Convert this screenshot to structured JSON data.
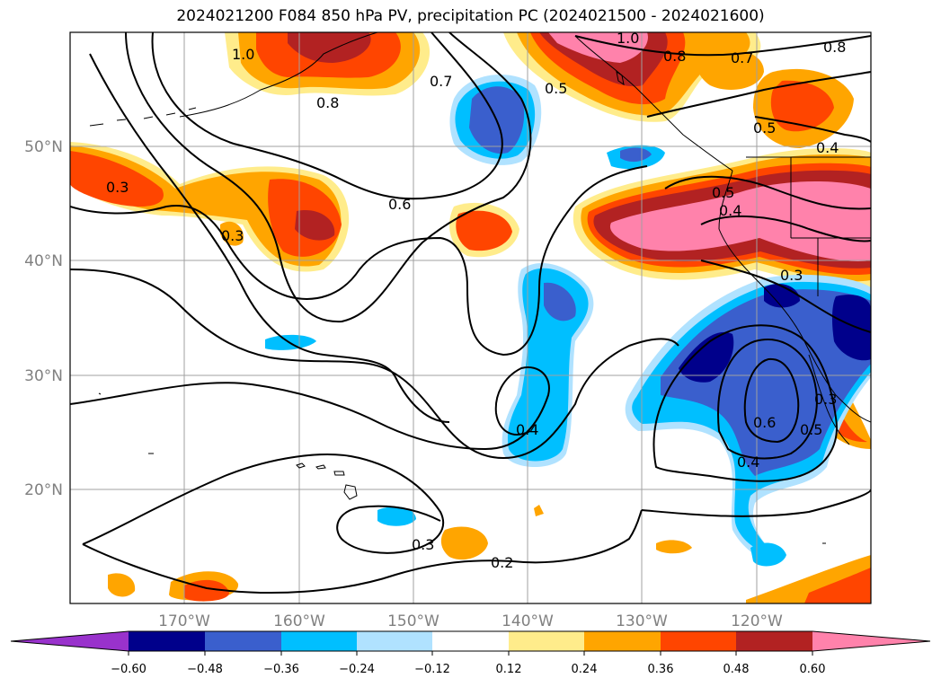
{
  "title": "2024021200 F084 850 hPa PV, precipitation PC (2024021500 - 2024021600)",
  "map": {
    "projection": "PlateCarree",
    "extent_lon": [
      -180,
      -110
    ],
    "extent_lat": [
      10,
      60
    ],
    "lon_ticks": [
      {
        "lon": -170,
        "label": "170°W"
      },
      {
        "lon": -160,
        "label": "160°W"
      },
      {
        "lon": -150,
        "label": "150°W"
      },
      {
        "lon": -140,
        "label": "140°W"
      },
      {
        "lon": -130,
        "label": "130°W"
      },
      {
        "lon": -120,
        "label": "120°W"
      }
    ],
    "lat_ticks": [
      {
        "lat": 50,
        "label": "50°N"
      },
      {
        "lat": 40,
        "label": "40°N"
      },
      {
        "lat": 30,
        "label": "30°N"
      },
      {
        "lat": 20,
        "label": "20°N"
      }
    ],
    "contour_labels": [
      "1.0",
      "0.8",
      "0.7",
      "0.5",
      "0.6",
      "0.3",
      "0.4",
      "0.2"
    ]
  },
  "colorbar": {
    "levels": [
      "−0.60",
      "−0.48",
      "−0.36",
      "−0.24",
      "−0.12",
      "0.12",
      "0.24",
      "0.36",
      "0.48",
      "0.60"
    ],
    "colors": [
      "#9932cc",
      "#00008b",
      "#3a5fcd",
      "#00bfff",
      "#b0e2ff",
      "#ffffff",
      "#ffec8b",
      "#ffa500",
      "#ff4500",
      "#b22222",
      "#ff82ab"
    ],
    "extend": "both"
  }
}
